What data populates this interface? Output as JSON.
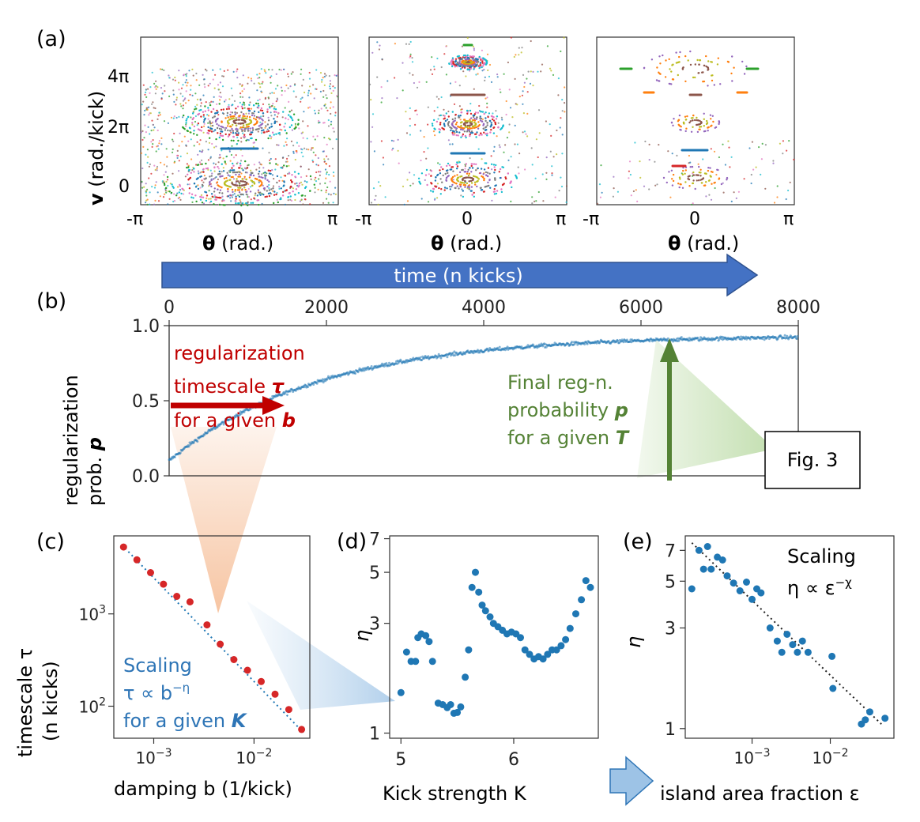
{
  "panel_labels": {
    "a": "(a)",
    "b": "(b)",
    "c": "(c)",
    "d": "(d)",
    "e": "(e)"
  },
  "panel_a": {
    "ylabel_bold": "v",
    "ylabel_rest": " (rad./kick)",
    "yticks": [
      "4π",
      "2π",
      "0"
    ],
    "xticks": [
      "-π",
      "0",
      "π"
    ],
    "xlabel_bold": "θ",
    "xlabel_rest": " (rad.)"
  },
  "arrow_label": "time (n kicks)",
  "colors": {
    "arrow": "#4472c4",
    "series": "#1f77b4",
    "red_dot": "#d62728",
    "annot_red": "#c00000",
    "annot_green": "#548235",
    "annot_blue": "#2e75b6",
    "annot_arrow_blue": "#9dc3e6"
  },
  "panel_b": {
    "ylabel_line1": "regularization",
    "ylabel_line2_plain": "prob. ",
    "ylabel_line2_italic": "p",
    "callout_label": "Fig. 3",
    "annotation_red": {
      "line1": "regularization",
      "line2": "timescale ",
      "line2_sym": "τ",
      "line3": "for a given ",
      "line3_sym": "b"
    },
    "annotation_green": {
      "line1": "Final reg-n.",
      "line2": "probability ",
      "line2_sym": "p",
      "line3": "for a given ",
      "line3_sym": "T"
    }
  },
  "panel_c": {
    "ylabel_line1": "timescale τ",
    "ylabel_line2": "(n kicks)",
    "xlabel": "damping b (1/kick)",
    "annotation": {
      "line1": "Scaling",
      "line2": "τ ∝ b",
      "line2_sup": "−η",
      "line3": "for a given ",
      "line3_sym": "K"
    }
  },
  "panel_d": {
    "ylabel": "η",
    "xlabel": "Kick strength K"
  },
  "panel_e": {
    "ylabel": "η",
    "xlabel": "island area fraction ε",
    "annotation": {
      "line1": "Scaling",
      "line2": "η ∝ ε",
      "line2_sup": "−χ"
    }
  },
  "chart_data": [
    {
      "id": "b",
      "type": "scatter",
      "title": "",
      "xlabel": "time (n kicks)",
      "ylabel": "regularization prob. p",
      "xlim": [
        0,
        8000
      ],
      "ylim": [
        0.0,
        1.0
      ],
      "xticks": [
        0,
        2000,
        4000,
        6000,
        8000
      ],
      "yticks": [
        0.0,
        0.5,
        1.0
      ],
      "ytick_labels": [
        "0.0",
        "0.5",
        "1.0"
      ],
      "x_axis_position": "top",
      "series": [
        {
          "name": "p(n)",
          "model": "saturating",
          "p0": 0.1,
          "p_inf": 0.935,
          "tau": 1900
        }
      ]
    },
    {
      "id": "c",
      "type": "scatter",
      "scale": "log-log",
      "xlabel": "damping b (1/kick)",
      "ylabel": "timescale τ (n kicks)",
      "xlim": [
        0.0004,
        0.036
      ],
      "ylim": [
        45,
        7000
      ],
      "xtick_labels": [
        "10^-3",
        "10^-2"
      ],
      "ytick_labels": [
        "10^2",
        "10^3"
      ],
      "x": [
        0.0005,
        0.00068,
        0.00093,
        0.00125,
        0.0017,
        0.0023,
        0.0034,
        0.0046,
        0.0063,
        0.0086,
        0.0118,
        0.0162,
        0.0222,
        0.0298
      ],
      "y": [
        5300,
        3850,
        2800,
        2100,
        1550,
        1350,
        760,
        470,
        320,
        245,
        185,
        135,
        92,
        56
      ],
      "fit": {
        "x": [
          0.00048,
          0.031
        ],
        "y": [
          5600,
          52
        ]
      }
    },
    {
      "id": "d",
      "type": "scatter",
      "scale": "log-y",
      "xlabel": "Kick strength K",
      "ylabel": "η",
      "xlim": [
        4.9,
        6.75
      ],
      "ylim": [
        0.95,
        7.2
      ],
      "xticks": [
        5,
        6
      ],
      "yticks": [
        1,
        3,
        5,
        7
      ],
      "x": [
        5.0,
        5.05,
        5.09,
        5.13,
        5.15,
        5.18,
        5.22,
        5.25,
        5.28,
        5.33,
        5.37,
        5.41,
        5.44,
        5.47,
        5.5,
        5.53,
        5.57,
        5.6,
        5.63,
        5.66,
        5.69,
        5.72,
        5.75,
        5.79,
        5.82,
        5.86,
        5.9,
        5.94,
        5.98,
        6.02,
        6.06,
        6.1,
        6.14,
        6.18,
        6.22,
        6.26,
        6.3,
        6.34,
        6.38,
        6.42,
        6.46,
        6.5,
        6.55,
        6.6,
        6.64,
        6.68
      ],
      "y": [
        1.5,
        2.25,
        2.05,
        2.05,
        2.6,
        2.7,
        2.65,
        2.5,
        2.05,
        1.35,
        1.33,
        1.29,
        1.33,
        1.22,
        1.23,
        1.3,
        1.75,
        2.3,
        4.3,
        5.0,
        4.1,
        3.6,
        3.4,
        3.2,
        3.0,
        2.9,
        2.8,
        2.7,
        2.75,
        2.7,
        2.6,
        2.3,
        2.2,
        2.1,
        2.15,
        2.1,
        2.2,
        2.3,
        2.3,
        2.4,
        2.55,
        2.85,
        3.3,
        3.8,
        4.6,
        4.3
      ]
    },
    {
      "id": "e",
      "type": "scatter",
      "scale": "log-log",
      "xlabel": "island area fraction ε",
      "ylabel": "η",
      "xlim": [
        0.00014,
        0.065
      ],
      "ylim": [
        0.9,
        8.2
      ],
      "xtick_labels": [
        "10^-3",
        "10^-2"
      ],
      "ytick_labels": [
        "1",
        "3",
        "5",
        "7"
      ],
      "x": [
        0.00017,
        0.00021,
        0.00024,
        0.00027,
        0.0003,
        0.00036,
        0.00042,
        0.00048,
        0.00058,
        0.0007,
        0.00085,
        0.001,
        0.00115,
        0.0013,
        0.0017,
        0.0021,
        0.0024,
        0.0028,
        0.0033,
        0.0038,
        0.0044,
        0.0052,
        0.0105,
        0.0108,
        0.025,
        0.028,
        0.032,
        0.05
      ],
      "y": [
        4.6,
        7.0,
        5.7,
        7.3,
        5.7,
        6.5,
        6.3,
        5.3,
        4.9,
        4.5,
        4.95,
        4.1,
        4.6,
        4.4,
        3.0,
        2.6,
        2.3,
        2.8,
        2.5,
        2.3,
        2.6,
        2.3,
        2.2,
        1.55,
        1.05,
        1.1,
        1.2,
        1.12
      ],
      "fit": {
        "x": [
          0.00017,
          0.045
        ],
        "y": [
          7.6,
          1.05
        ]
      }
    }
  ]
}
